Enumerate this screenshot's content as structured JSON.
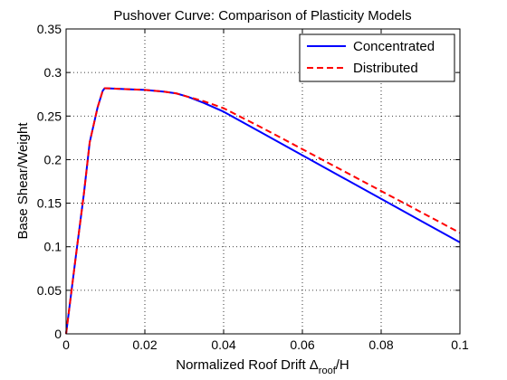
{
  "chart_data": {
    "type": "line",
    "title": "Pushover Curve:  Comparison of Plasticity Models",
    "xlabel": {
      "main": "Normalized Roof Drift Δ",
      "subscript": "roof",
      "suffix": "/H"
    },
    "ylabel": "Base Shear/Weight",
    "xlim": [
      0,
      0.1
    ],
    "ylim": [
      0,
      0.35
    ],
    "xticks": [
      0,
      0.02,
      0.04,
      0.06,
      0.08,
      0.1
    ],
    "yticks": [
      0,
      0.05,
      0.1,
      0.15,
      0.2,
      0.25,
      0.3,
      0.35
    ],
    "xtick_labels": [
      "0",
      "0.02",
      "0.04",
      "0.06",
      "0.08",
      "0.1"
    ],
    "ytick_labels": [
      "0",
      "0.05",
      "0.1",
      "0.15",
      "0.2",
      "0.25",
      "0.3",
      "0.35"
    ],
    "grid": true,
    "legend_position": "top-right",
    "series": [
      {
        "name": "Concentrated",
        "color": "#0000ff",
        "style": "solid",
        "x": [
          0,
          0.0025,
          0.0045,
          0.006,
          0.008,
          0.0093,
          0.0098,
          0.015,
          0.02,
          0.025,
          0.028,
          0.031,
          0.035,
          0.04,
          0.05,
          0.06,
          0.07,
          0.08,
          0.09,
          0.1
        ],
        "y": [
          0,
          0.09,
          0.16,
          0.22,
          0.26,
          0.279,
          0.282,
          0.281,
          0.28,
          0.278,
          0.276,
          0.272,
          0.265,
          0.255,
          0.23,
          0.205,
          0.18,
          0.155,
          0.13,
          0.105
        ]
      },
      {
        "name": "Distributed",
        "color": "#ff0000",
        "style": "dashed",
        "x": [
          0,
          0.0025,
          0.0045,
          0.006,
          0.008,
          0.0093,
          0.0098,
          0.015,
          0.02,
          0.025,
          0.028,
          0.031,
          0.035,
          0.04,
          0.05,
          0.06,
          0.07,
          0.08,
          0.09,
          0.1
        ],
        "y": [
          0,
          0.09,
          0.16,
          0.22,
          0.26,
          0.279,
          0.282,
          0.281,
          0.28,
          0.278,
          0.276,
          0.272,
          0.267,
          0.259,
          0.236,
          0.212,
          0.188,
          0.164,
          0.14,
          0.116
        ]
      }
    ]
  }
}
